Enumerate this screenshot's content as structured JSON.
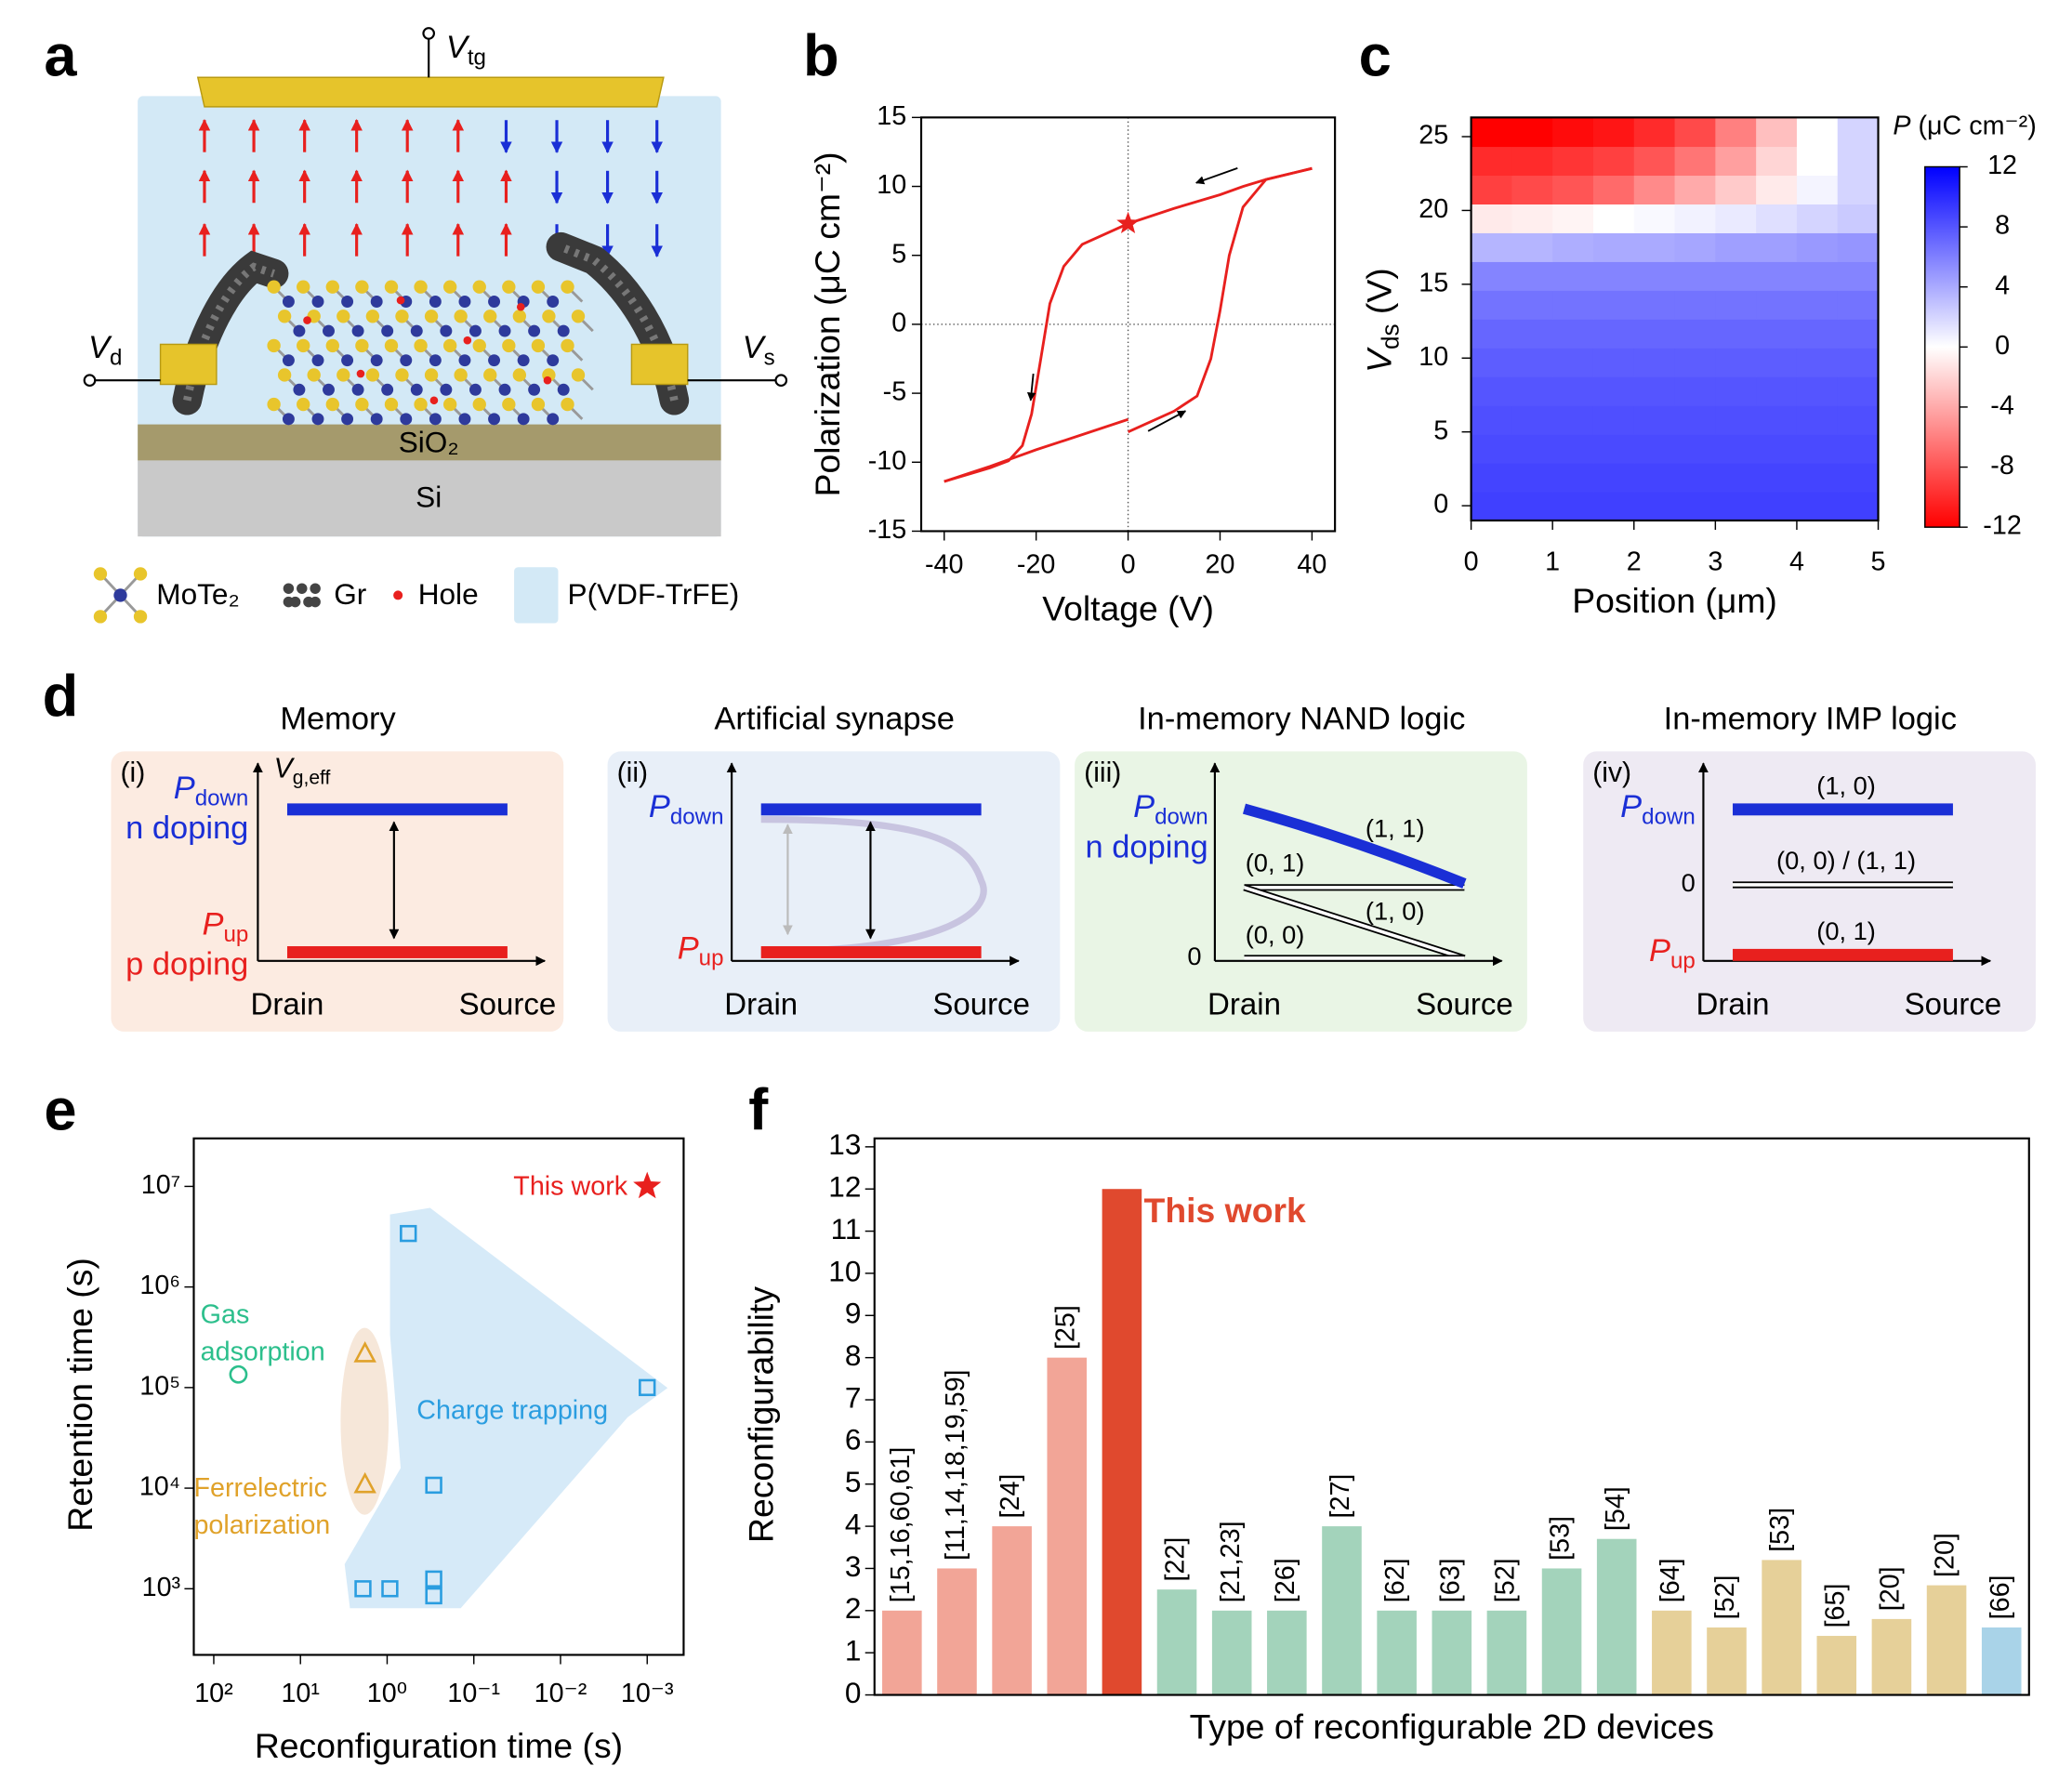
{
  "panel_labels": [
    "a",
    "b",
    "c",
    "d",
    "e",
    "f"
  ],
  "device": {
    "v_tg": {
      "main": "V",
      "sub": "tg"
    },
    "v_d": {
      "main": "V",
      "sub": "d"
    },
    "v_s": {
      "main": "V",
      "sub": "s"
    },
    "oxide": "SiO₂",
    "substrate": "Si",
    "legend": [
      "MoTe₂",
      "Gr",
      "Hole",
      "P(VDF-TrFE)"
    ]
  },
  "operations": [
    {
      "title": "Memory",
      "tag": "(i)",
      "axis_y": {
        "main": "V",
        "sub": "g,eff"
      },
      "drain": "Drain",
      "source": "Source",
      "p_down": {
        "main": "P",
        "sub": "down"
      },
      "n_doping": "n doping",
      "p_up": {
        "main": "P",
        "sub": "up"
      },
      "p_doping": "p doping"
    },
    {
      "title": "Artificial synapse",
      "tag": "(ii)",
      "drain": "Drain",
      "source": "Source",
      "p_down": {
        "main": "P",
        "sub": "down"
      },
      "p_up": {
        "main": "P",
        "sub": "up"
      }
    },
    {
      "title": "In-memory NAND logic",
      "tag": "(iii)",
      "drain": "Drain",
      "source": "Source",
      "p_down": {
        "main": "P",
        "sub": "down"
      },
      "n_doping": "n doping",
      "states": [
        "(1, 1)",
        "(0, 1)",
        "(1, 0)",
        "(0, 0)"
      ],
      "zero": "0"
    },
    {
      "title": "In-memory IMP logic",
      "tag": "(iv)",
      "drain": "Drain",
      "source": "Source",
      "p_down": {
        "main": "P",
        "sub": "down"
      },
      "p_up": {
        "main": "P",
        "sub": "up"
      },
      "states": [
        "(1, 0)",
        "(0, 0) / (1, 1)",
        "(0, 1)"
      ],
      "zero": "0"
    }
  ],
  "chart_data": [
    {
      "type": "line",
      "xlabel": "Voltage (V)",
      "ylabel": "Polarization (μC cm⁻²)",
      "xlim": [
        -45,
        45
      ],
      "xticks": [
        -40,
        -20,
        0,
        20,
        40
      ],
      "ylim": [
        -15,
        15
      ],
      "yticks": [
        -15,
        -10,
        -5,
        0,
        5,
        10,
        15
      ],
      "series": [
        {
          "color": "#e8201e",
          "x": [
            40,
            30,
            25,
            20,
            10,
            0,
            -10,
            -14,
            -17,
            -19,
            -21,
            -23,
            -26,
            -30,
            -40
          ],
          "values": [
            11.3,
            10.5,
            10,
            9.4,
            8.4,
            7.3,
            5.8,
            4.2,
            1.5,
            -2.5,
            -6.5,
            -8.8,
            -9.9,
            -10.4,
            -11.4
          ]
        },
        {
          "color": "#e8201e",
          "x": [
            -40,
            -30,
            -20,
            -10,
            0
          ],
          "values": [
            -11.4,
            -10.3,
            -9.1,
            -8,
            -6.9
          ]
        },
        {
          "color": "#e8201e",
          "x": [
            0,
            10,
            15,
            18,
            20,
            22,
            25,
            30,
            40
          ],
          "values": [
            -7.8,
            -6.3,
            -5.2,
            -2.5,
            1,
            5,
            8.5,
            10.5,
            11.3
          ]
        }
      ],
      "marker": {
        "x": 0,
        "y": 7.3,
        "color": "#e8201e"
      }
    },
    {
      "type": "heatmap",
      "xlabel": "Position (μm)",
      "ylabel": {
        "main": "V",
        "sub": "ds",
        "end": " (V)"
      },
      "xlim": [
        0,
        5
      ],
      "xticks": [
        0,
        1,
        2,
        3,
        4,
        5
      ],
      "ylim": [
        -1,
        26.3
      ],
      "yticks": [
        0,
        5,
        10,
        15,
        20,
        25
      ],
      "x_bins": [
        0,
        0.5,
        1,
        1.5,
        2,
        2.5,
        3,
        3.5,
        4,
        4.5,
        5
      ],
      "y_bins": [
        -1,
        0.95,
        2.9,
        4.85,
        6.8,
        8.75,
        10.7,
        12.65,
        14.6,
        16.55,
        18.5,
        20.45,
        22.4,
        24.35,
        26.3
      ],
      "values": [
        [
          9,
          9,
          9,
          9,
          9,
          9,
          9,
          9,
          9,
          9
        ],
        [
          8.8,
          8.8,
          8.8,
          8.8,
          8.8,
          8.8,
          8.8,
          8.8,
          8.8,
          8.8
        ],
        [
          8.5,
          8.5,
          8.5,
          8.5,
          8.5,
          8.5,
          8.5,
          8.5,
          8.5,
          8.5
        ],
        [
          8.3,
          8.3,
          8.3,
          8.3,
          8.3,
          8.3,
          8.3,
          8.3,
          8.3,
          8.3
        ],
        [
          8,
          8,
          8,
          8,
          8,
          8,
          8,
          8,
          8,
          8
        ],
        [
          7.6,
          7.6,
          7.6,
          7.6,
          7.6,
          7.6,
          7.6,
          7.6,
          7.6,
          7.6
        ],
        [
          7.2,
          7.2,
          7.2,
          7.2,
          7.2,
          7.2,
          7.2,
          7.2,
          7.2,
          7.2
        ],
        [
          6.6,
          6.6,
          6.6,
          6.6,
          6.6,
          6.6,
          6.6,
          6.6,
          6.6,
          6.6
        ],
        [
          5.8,
          5.8,
          5.8,
          5.8,
          5.8,
          5.8,
          5.8,
          5.8,
          5.8,
          5.8
        ],
        [
          3.5,
          3.5,
          3.8,
          4,
          4,
          4.2,
          4.5,
          4.5,
          4.8,
          5
        ],
        [
          -1,
          -0.8,
          -0.5,
          0,
          0.3,
          0.6,
          1,
          1.5,
          2,
          2.5
        ],
        [
          -9,
          -8.5,
          -8,
          -7,
          -5.5,
          -4,
          -2.5,
          -1,
          0.5,
          2
        ],
        [
          -10,
          -10,
          -9.5,
          -9,
          -8,
          -6.5,
          -4.5,
          -2,
          0,
          2
        ],
        [
          -12,
          -12,
          -11.5,
          -11,
          -10,
          -8.5,
          -6,
          -3,
          0,
          2
        ]
      ],
      "colorbar": {
        "label": {
          "main": "P",
          "end": " (μC cm⁻²)"
        },
        "lim": [
          -12,
          12
        ],
        "ticks": [
          -12,
          -8,
          -4,
          0,
          4,
          8,
          12
        ],
        "colors": [
          "#ff0000",
          "#ffffff",
          "#0000ff"
        ]
      }
    },
    {
      "type": "scatter",
      "xlabel": "Reconfiguration time (s)",
      "ylabel": "Retention time (s)",
      "xlog": true,
      "ylog": true,
      "xlim": [
        170,
        0.00038
      ],
      "ylim": [
        220,
        30000000
      ],
      "xticks": [
        {
          "value": 100,
          "label": "10²"
        },
        {
          "value": 10,
          "label": "10¹"
        },
        {
          "value": 1,
          "label": "10⁰"
        },
        {
          "value": 0.1,
          "label": "10⁻¹"
        },
        {
          "value": 0.01,
          "label": "10⁻²"
        },
        {
          "value": 0.001,
          "label": "10⁻³"
        }
      ],
      "yticks": [
        {
          "value": 1000,
          "label": "10³"
        },
        {
          "value": 10000,
          "label": "10⁴"
        },
        {
          "value": 100000,
          "label": "10⁵"
        },
        {
          "value": 1000000,
          "label": "10⁶"
        },
        {
          "value": 10000000,
          "label": "10⁷"
        }
      ],
      "series": [
        {
          "label": [
            "Gas",
            "adsorption"
          ],
          "marker": "circle",
          "color": "#2cbf8c",
          "x": [
            52
          ],
          "values": [
            135000
          ]
        },
        {
          "label": [
            "Ferrelectric",
            "polarization"
          ],
          "marker": "triangle",
          "color": "#e0a22a",
          "x": [
            1.8,
            1.8
          ],
          "values": [
            220000,
            11000
          ]
        },
        {
          "label": [
            "Charge trapping"
          ],
          "marker": "square",
          "color": "#2a9de0",
          "x": [
            0.57,
            0.001,
            0.29,
            1.9,
            0.93,
            0.29,
            0.29
          ],
          "values": [
            3400000,
            100000,
            10700,
            1000,
            1000,
            1250,
            850
          ]
        },
        {
          "label": [
            "This work"
          ],
          "marker": "star",
          "color": "#e8201e",
          "x": [
            0.001
          ],
          "values": [
            10000000
          ]
        }
      ]
    },
    {
      "type": "bar",
      "xlabel": "Type of reconfigurable 2D devices",
      "ylabel": "Reconfigurability",
      "ylim": [
        0,
        13.2
      ],
      "yticks": [
        0,
        1,
        2,
        3,
        4,
        5,
        6,
        7,
        8,
        9,
        10,
        11,
        12,
        13
      ],
      "values": [
        2,
        3,
        4,
        8,
        12,
        2.5,
        2,
        2,
        4,
        2,
        2,
        2,
        3,
        3.7,
        2,
        1.6,
        3.2,
        1.4,
        1.8,
        2.6,
        1.6
      ],
      "bar_labels": [
        "[15,16,60,61]",
        "[11,14,18,19,59]",
        "[24]",
        "[25]",
        "This work",
        "[22]",
        "[21,23]",
        "[26]",
        "[27]",
        "[62]",
        "[63]",
        "[52]",
        "[53]",
        "[54]",
        "[64]",
        "[52]",
        "[53]",
        "[65]",
        "[20]",
        "[20]",
        "[66]"
      ],
      "colors": [
        "#f2a597",
        "#f2a597",
        "#f2a597",
        "#f2a597",
        "#e0492e",
        "#a3d3bb",
        "#a3d3bb",
        "#a3d3bb",
        "#a3d3bb",
        "#a3d3bb",
        "#a3d3bb",
        "#a3d3bb",
        "#a3d3bb",
        "#a3d3bb",
        "#e6d099",
        "#e6d099",
        "#e6d099",
        "#e6d099",
        "#e6d099",
        "#e6d099",
        "#a9d3e8"
      ]
    }
  ]
}
